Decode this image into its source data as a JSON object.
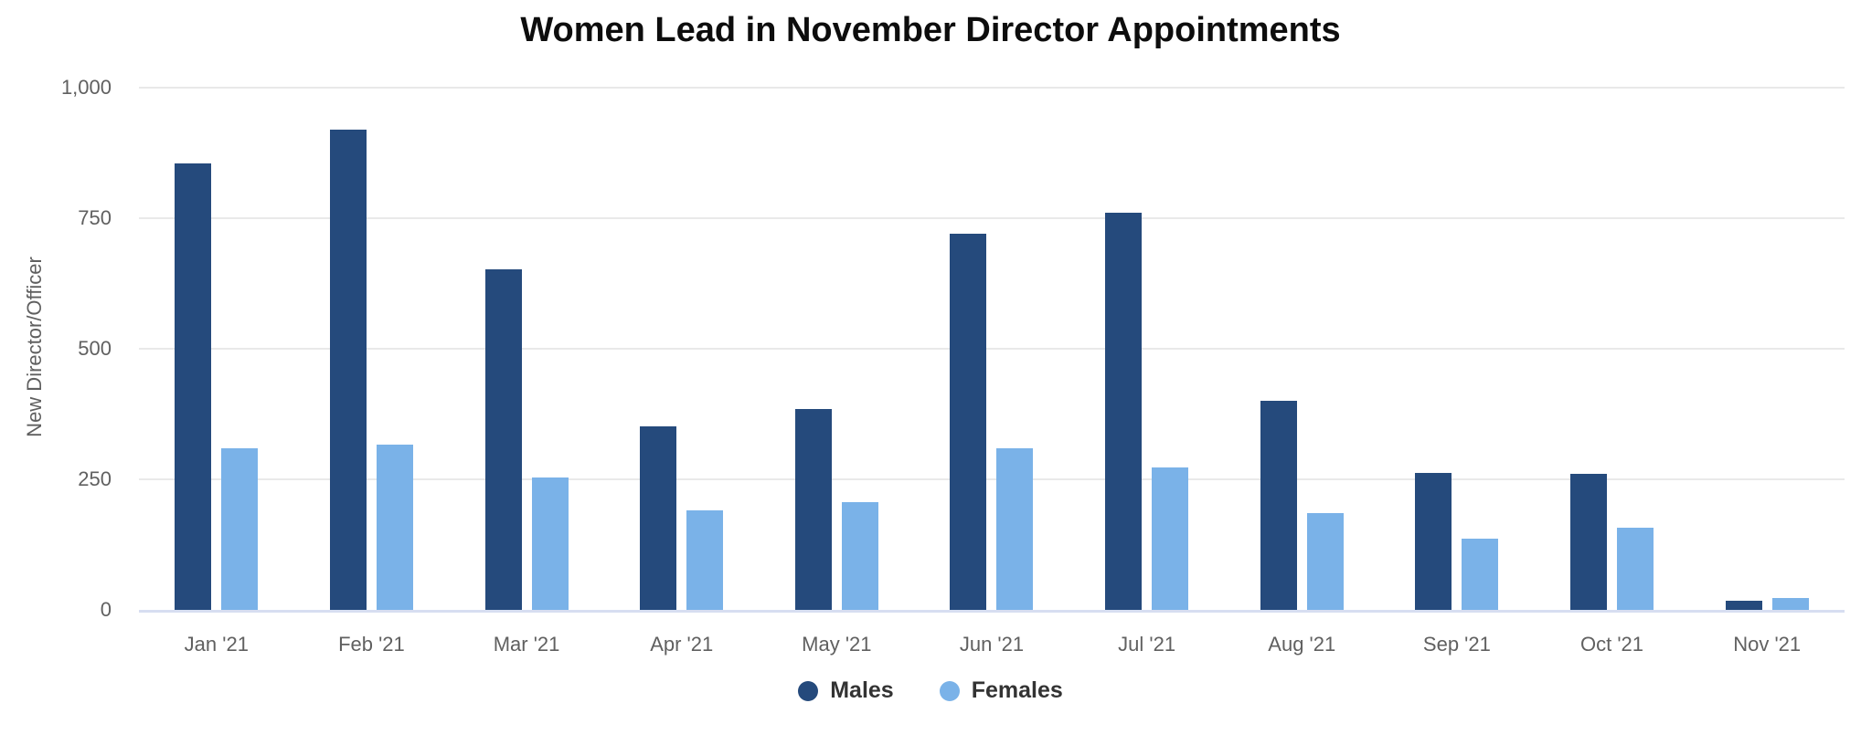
{
  "chart_data": {
    "type": "bar",
    "title": "Women Lead in November Director Appointments",
    "ylabel": "New Director/Officer",
    "xlabel": "",
    "categories": [
      "Jan '21",
      "Feb '21",
      "Mar '21",
      "Apr '21",
      "May '21",
      "Jun '21",
      "Jul '21",
      "Aug '21",
      "Sep '21",
      "Oct '21",
      "Nov '21"
    ],
    "series": [
      {
        "name": "Males",
        "color": "#254a7c",
        "values": [
          855,
          920,
          652,
          351,
          385,
          720,
          760,
          400,
          262,
          261,
          18
        ]
      },
      {
        "name": "Females",
        "color": "#7ab2e8",
        "values": [
          309,
          316,
          254,
          190,
          207,
          309,
          273,
          186,
          137,
          158,
          23
        ]
      }
    ],
    "ylim": [
      0,
      1000
    ],
    "yticks": [
      0,
      250,
      500,
      750,
      1000
    ],
    "ytick_labels": [
      "0",
      "250",
      "500",
      "750",
      "1,000"
    ],
    "grid": "horizontal",
    "legend_position": "bottom",
    "colors": {
      "gridline": "#e9e9e9",
      "baseline": "#d7def1",
      "tick_text": "#606060",
      "title_text": "#0d0d0d",
      "legend_text": "#333333"
    }
  }
}
